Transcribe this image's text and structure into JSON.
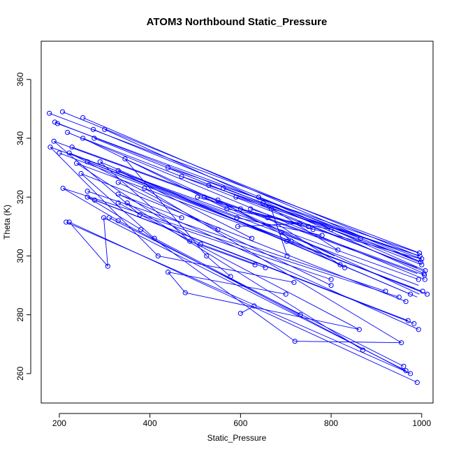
{
  "chart_data": {
    "type": "scatter",
    "title": "ATOM3 Northbound Static_Pressure",
    "xlabel": "Static_Pressure",
    "ylabel": "Theta (K)",
    "xlim": [
      160,
      1025
    ],
    "ylim": [
      250,
      373
    ],
    "xticks": [
      200,
      400,
      600,
      800,
      1000
    ],
    "yticks": [
      260,
      280,
      300,
      320,
      340,
      360
    ],
    "grid": false,
    "legend": "none",
    "color": "#0000ff",
    "points": [
      [
        178,
        348.5
      ],
      [
        207,
        349
      ],
      [
        252,
        347
      ],
      [
        190,
        345.5
      ],
      [
        196,
        345
      ],
      [
        275,
        343
      ],
      [
        300,
        343
      ],
      [
        218,
        342
      ],
      [
        252,
        340
      ],
      [
        277,
        340
      ],
      [
        180,
        337
      ],
      [
        188,
        339
      ],
      [
        228,
        337
      ],
      [
        200,
        335
      ],
      [
        222,
        335
      ],
      [
        238,
        331.5
      ],
      [
        262,
        332
      ],
      [
        290,
        332
      ],
      [
        345,
        333
      ],
      [
        330,
        329
      ],
      [
        248,
        328
      ],
      [
        208,
        323
      ],
      [
        262,
        322
      ],
      [
        262,
        320
      ],
      [
        278,
        319
      ],
      [
        330,
        321
      ],
      [
        330,
        318
      ],
      [
        350,
        318
      ],
      [
        388,
        323
      ],
      [
        330,
        325
      ],
      [
        215,
        311.5
      ],
      [
        222,
        311.5
      ],
      [
        298,
        313
      ],
      [
        310,
        313
      ],
      [
        330,
        312
      ],
      [
        378,
        314
      ],
      [
        380,
        309
      ],
      [
        410,
        306
      ],
      [
        418,
        300
      ],
      [
        440,
        294.5
      ],
      [
        307,
        296.5
      ],
      [
        478,
        287.5
      ],
      [
        488,
        305
      ],
      [
        512,
        304
      ],
      [
        525,
        300
      ],
      [
        520,
        320
      ],
      [
        550,
        319
      ],
      [
        562,
        323
      ],
      [
        570,
        316
      ],
      [
        592,
        313
      ],
      [
        594,
        310
      ],
      [
        600,
        316
      ],
      [
        622,
        316
      ],
      [
        650,
        318
      ],
      [
        660,
        313
      ],
      [
        668,
        316
      ],
      [
        690,
        308
      ],
      [
        702,
        305
      ],
      [
        712,
        305
      ],
      [
        718,
        291
      ],
      [
        700,
        287
      ],
      [
        732,
        280
      ],
      [
        720,
        271
      ],
      [
        600,
        280.5
      ],
      [
        630,
        283
      ],
      [
        632,
        297
      ],
      [
        655,
        296
      ],
      [
        578,
        293
      ],
      [
        550,
        309
      ],
      [
        625,
        306
      ],
      [
        470,
        313
      ],
      [
        440,
        330
      ],
      [
        470,
        327
      ],
      [
        505,
        320
      ],
      [
        530,
        324
      ],
      [
        590,
        320
      ],
      [
        640,
        320
      ],
      [
        703,
        300
      ],
      [
        730,
        311
      ],
      [
        750,
        310
      ],
      [
        760,
        309
      ],
      [
        780,
        307
      ],
      [
        800,
        309
      ],
      [
        815,
        302
      ],
      [
        820,
        297
      ],
      [
        830,
        296
      ],
      [
        800,
        290
      ],
      [
        800,
        292
      ],
      [
        865,
        306
      ],
      [
        862,
        275
      ],
      [
        870,
        268
      ],
      [
        920,
        288
      ],
      [
        950,
        286
      ],
      [
        955,
        270.5
      ],
      [
        960,
        262.5
      ],
      [
        965,
        261
      ],
      [
        965,
        284.5
      ],
      [
        970,
        278
      ],
      [
        975,
        260
      ],
      [
        975,
        287
      ],
      [
        983,
        277
      ],
      [
        990,
        257
      ],
      [
        993,
        292
      ],
      [
        993,
        275
      ],
      [
        995,
        301
      ],
      [
        996,
        300
      ],
      [
        998,
        298
      ],
      [
        1000,
        299
      ],
      [
        1000,
        297
      ],
      [
        1002,
        288
      ],
      [
        1005,
        294
      ],
      [
        1006,
        293.5
      ],
      [
        1007,
        292
      ],
      [
        1008,
        295
      ],
      [
        1012,
        287
      ]
    ],
    "segments": [
      [
        178,
        348.5,
        995,
        301
      ],
      [
        207,
        349,
        993,
        300
      ],
      [
        252,
        347,
        998,
        298
      ],
      [
        190,
        345.5,
        1000,
        297
      ],
      [
        196,
        345,
        1000,
        299
      ],
      [
        275,
        343,
        993,
        298
      ],
      [
        300,
        343,
        1005,
        294
      ],
      [
        218,
        342,
        1007,
        292
      ],
      [
        252,
        340,
        990,
        296
      ],
      [
        277,
        340,
        1002,
        295
      ],
      [
        180,
        337,
        993,
        292
      ],
      [
        188,
        339,
        990,
        294
      ],
      [
        228,
        337,
        1006,
        293.5
      ],
      [
        200,
        335,
        1000,
        288
      ],
      [
        222,
        335,
        993,
        290
      ],
      [
        238,
        331.5,
        985,
        289
      ],
      [
        262,
        332,
        1012,
        287
      ],
      [
        290,
        332,
        990,
        286
      ],
      [
        345,
        333,
        995,
        287
      ],
      [
        330,
        329,
        975,
        287
      ],
      [
        248,
        328,
        965,
        284.5
      ],
      [
        208,
        323,
        950,
        286
      ],
      [
        262,
        322,
        920,
        288
      ],
      [
        262,
        320,
        970,
        278
      ],
      [
        278,
        319,
        983,
        277
      ],
      [
        330,
        321,
        993,
        275
      ],
      [
        330,
        318,
        862,
        275
      ],
      [
        350,
        318,
        870,
        268
      ],
      [
        388,
        323,
        955,
        270.5
      ],
      [
        330,
        325,
        800,
        290
      ],
      [
        215,
        311.5,
        975,
        260
      ],
      [
        222,
        311.5,
        990,
        257
      ],
      [
        298,
        313,
        965,
        261
      ],
      [
        310,
        313,
        960,
        262.5
      ],
      [
        330,
        312,
        975,
        260
      ],
      [
        378,
        314,
        800,
        292
      ],
      [
        380,
        309,
        720,
        271
      ],
      [
        410,
        306,
        732,
        280
      ],
      [
        418,
        300,
        718,
        291
      ],
      [
        440,
        294.5,
        700,
        287
      ],
      [
        307,
        296.5,
        222,
        311.5
      ],
      [
        478,
        287.5,
        440,
        294.5
      ],
      [
        488,
        305,
        632,
        297
      ],
      [
        512,
        304,
        655,
        296
      ],
      [
        525,
        300,
        578,
        293
      ],
      [
        520,
        320,
        808,
        300
      ],
      [
        550,
        319,
        830,
        296
      ],
      [
        562,
        323,
        865,
        306
      ],
      [
        570,
        316,
        800,
        309
      ],
      [
        592,
        313,
        780,
        307
      ],
      [
        594,
        310,
        730,
        311
      ],
      [
        600,
        316,
        750,
        310
      ],
      [
        622,
        316,
        760,
        309
      ],
      [
        650,
        318,
        815,
        302
      ],
      [
        660,
        313,
        820,
        297
      ],
      [
        668,
        316,
        703,
        300
      ],
      [
        690,
        308,
        712,
        305
      ],
      [
        600,
        280.5,
        630,
        283
      ],
      [
        720,
        271,
        955,
        270.5
      ],
      [
        478,
        287.5,
        862,
        275
      ],
      [
        440,
        330,
        993,
        301
      ],
      [
        470,
        327,
        995,
        300
      ],
      [
        505,
        320,
        998,
        299
      ],
      [
        530,
        324,
        1000,
        298
      ],
      [
        590,
        320,
        996,
        300
      ],
      [
        640,
        320,
        1008,
        295
      ],
      [
        180,
        337,
        418,
        300
      ],
      [
        188,
        339,
        378,
        314
      ],
      [
        248,
        328,
        410,
        306
      ],
      [
        330,
        321,
        470,
        313
      ],
      [
        298,
        313,
        307,
        296.5
      ],
      [
        262,
        320,
        380,
        309
      ],
      [
        290,
        332,
        488,
        305
      ],
      [
        345,
        333,
        525,
        300
      ],
      [
        330,
        329,
        625,
        306
      ],
      [
        222,
        335,
        550,
        309
      ],
      [
        238,
        331.5,
        512,
        304
      ],
      [
        262,
        332,
        592,
        313
      ],
      [
        252,
        340,
        570,
        316
      ],
      [
        208,
        323,
        330,
        312
      ]
    ]
  }
}
